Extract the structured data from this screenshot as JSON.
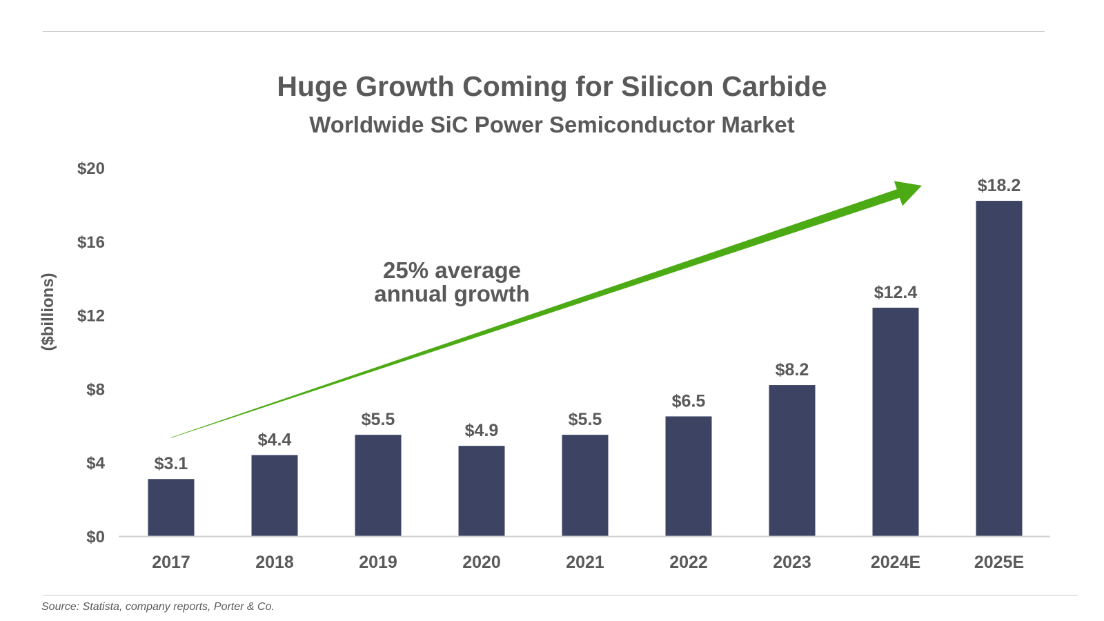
{
  "header": {
    "title": "Huge Growth Coming for Silicon Carbide",
    "subtitle": "Worldwide SiC Power Semiconductor Market"
  },
  "source_note": "Source: Statista, company reports, Porter & Co.",
  "colors": {
    "bar": "#3d4463",
    "arrow": "#4caa14",
    "text": "#595959",
    "axis": "#d0d0d0"
  },
  "chart_data": {
    "type": "bar",
    "title": "Huge Growth Coming for Silicon Carbide",
    "subtitle": "Worldwide SiC Power Semiconductor Market",
    "xlabel": "",
    "ylabel": "($billions)",
    "ylim": [
      0,
      20
    ],
    "yticks": [
      0,
      4,
      8,
      12,
      16,
      20
    ],
    "ytick_labels": [
      "$0",
      "$4",
      "$8",
      "$12",
      "$16",
      "$20"
    ],
    "categories": [
      "2017",
      "2018",
      "2019",
      "2020",
      "2021",
      "2022",
      "2023",
      "2024E",
      "2025E"
    ],
    "values": [
      3.1,
      4.4,
      5.5,
      4.9,
      5.5,
      6.5,
      8.2,
      12.4,
      18.2
    ],
    "data_labels": [
      "$3.1",
      "$4.4",
      "$5.5",
      "$4.9",
      "$5.5",
      "$6.5",
      "$8.2",
      "$12.4",
      "$18.2"
    ],
    "grid": false,
    "legend": "none",
    "annotation": {
      "lines": [
        "25% average",
        "annual growth"
      ],
      "arrow": "trend arrow from 2017 to 2025E"
    }
  }
}
